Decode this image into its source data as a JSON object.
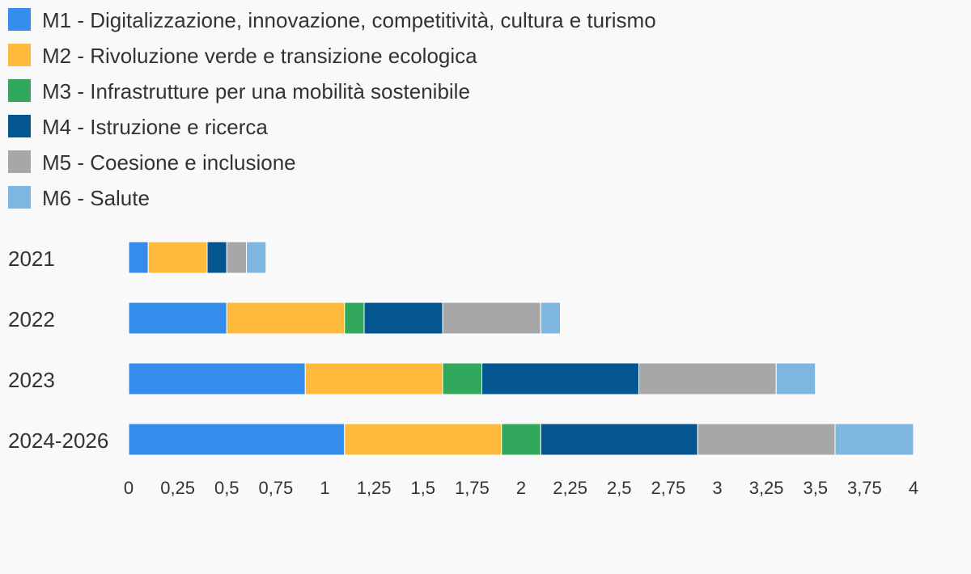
{
  "chart_data": {
    "type": "bar",
    "orientation": "horizontal",
    "stacked": true,
    "legend_position": "top-left",
    "grid": false,
    "categories": [
      "2021",
      "2022",
      "2023",
      "2024-2026"
    ],
    "series": [
      {
        "name": "M1 - Digitalizzazione, innovazione, competitività, cultura e turismo",
        "color": "#348ced",
        "values": [
          0.1,
          0.5,
          0.9,
          1.1
        ]
      },
      {
        "name": "M2 - Rivoluzione verde e transizione ecologica",
        "color": "#ffb93c",
        "values": [
          0.3,
          0.6,
          0.7,
          0.8
        ]
      },
      {
        "name": "M3 - Infrastrutture per una mobilità sostenibile",
        "color": "#32a85c",
        "values": [
          0,
          0.1,
          0.2,
          0.2
        ]
      },
      {
        "name": "M4 - Istruzione e ricerca",
        "color": "#03568f",
        "values": [
          0.1,
          0.4,
          0.8,
          0.8
        ]
      },
      {
        "name": "M5 - Coesione e inclusione",
        "color": "#a7a7a7",
        "values": [
          0.1,
          0.5,
          0.7,
          0.7
        ]
      },
      {
        "name": "M6 - Salute",
        "color": "#7db6de",
        "values": [
          0.1,
          0.1,
          0.2,
          0.4
        ]
      }
    ],
    "xlim": [
      0,
      4
    ],
    "xticks": [
      "0",
      "0,25",
      "0,5",
      "0,75",
      "1",
      "1,25",
      "1,5",
      "1,75",
      "2",
      "2,25",
      "2,5",
      "2,75",
      "3",
      "3,25",
      "3,5",
      "3,75",
      "4"
    ]
  }
}
